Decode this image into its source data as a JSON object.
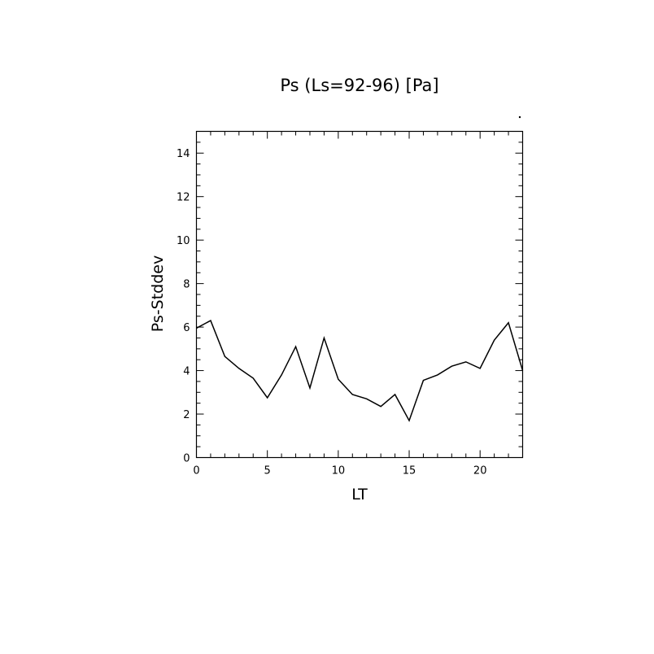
{
  "chart_data": {
    "type": "line",
    "title": "Ps (Ls=92-96) [Pa]",
    "xlabel": "LT",
    "ylabel": "Ps-Stddev",
    "xlim": [
      0,
      23
    ],
    "ylim": [
      0,
      15
    ],
    "x_ticks": [
      0,
      5,
      10,
      15,
      20
    ],
    "y_ticks": [
      0,
      2,
      4,
      6,
      8,
      10,
      12,
      14
    ],
    "grid": false,
    "series": [
      {
        "x": [
          0,
          1,
          2,
          3,
          4,
          5,
          6,
          7,
          8,
          9,
          10,
          11,
          12,
          13,
          14,
          15,
          16,
          17,
          18,
          19,
          20,
          21,
          22,
          23
        ],
        "y": [
          5.95,
          6.3,
          4.65,
          4.1,
          3.65,
          2.75,
          3.8,
          5.1,
          3.2,
          5.5,
          3.6,
          2.9,
          2.7,
          2.35,
          2.9,
          1.7,
          3.55,
          3.8,
          4.2,
          4.4,
          4.1,
          5.4,
          6.2,
          4.0
        ]
      }
    ]
  }
}
